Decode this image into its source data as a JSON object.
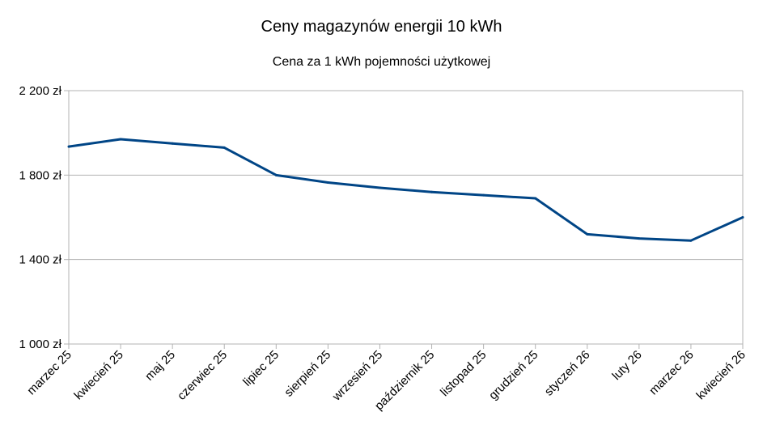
{
  "chart_data": {
    "type": "line",
    "title": "Ceny magazynów energii 10 kWh",
    "subtitle": "Cena za 1 kWh pojemności użytkowej",
    "xlabel": "",
    "ylabel": "",
    "categories": [
      "marzec 25",
      "kwiecień 25",
      "maj 25",
      "czerwiec 25",
      "lipiec 25",
      "sierpień 25",
      "wrzesień 25",
      "październik 25",
      "listopad 25",
      "grudzień 25",
      "styczeń 26",
      "luty 26",
      "marzec 26",
      "kwiecień 26"
    ],
    "series": [
      {
        "values": [
          1935,
          1970,
          1950,
          1930,
          1800,
          1765,
          1740,
          1720,
          1705,
          1690,
          1520,
          1500,
          1490,
          1600
        ],
        "color": "#004586"
      }
    ],
    "ylim": [
      1000,
      2200
    ],
    "yticks": [
      1000,
      1400,
      1800,
      2200
    ],
    "ytick_labels": [
      "1 000 zł",
      "1 400 zł",
      "1 800 zł",
      "2 200 zł"
    ],
    "grid": true,
    "legend": "none"
  }
}
